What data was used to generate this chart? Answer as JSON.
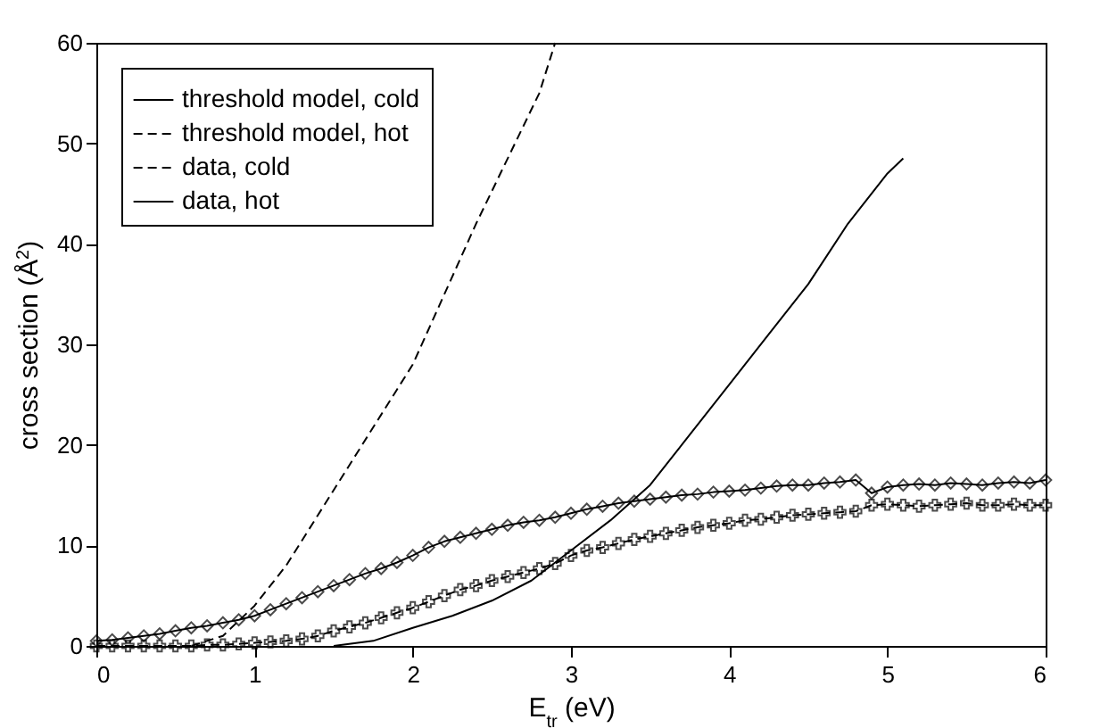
{
  "chart_data": {
    "type": "line",
    "xlabel": "E$_{tr}$ (eV)",
    "ylabel": "cross section (Å$^{2}$)",
    "xlim": [
      0,
      6
    ],
    "ylim": [
      0,
      60
    ],
    "xticks": [
      0,
      1,
      2,
      3,
      4,
      5,
      6
    ],
    "yticks": [
      0,
      10,
      20,
      30,
      40,
      50,
      60
    ],
    "grid": false,
    "legend": "top left",
    "series": [
      {
        "name": "threshold model, cold",
        "color": "#000000",
        "line_style": "solid",
        "marker": "none",
        "x": [
          1.5,
          1.75,
          2,
          2.25,
          2.5,
          2.75,
          3,
          3.25,
          3.5,
          3.75,
          4,
          4.25,
          4.5,
          4.75,
          5,
          5.1
        ],
        "values": [
          0,
          0.5,
          1.8,
          3,
          4.5,
          6.5,
          9.5,
          12.5,
          16,
          21,
          26,
          31,
          36,
          42,
          47,
          48.5
        ]
      },
      {
        "name": "threshold model, hot",
        "color": "#000000",
        "line_style": "dashed",
        "marker": "none",
        "x": [
          0.6,
          0.8,
          1,
          1.2,
          1.4,
          1.6,
          1.8,
          2,
          2.2,
          2.4,
          2.6,
          2.8,
          2.9
        ],
        "values": [
          0,
          1,
          4,
          8,
          13,
          18,
          23,
          28,
          35,
          42,
          48.5,
          55,
          60
        ]
      },
      {
        "name": "data, cold",
        "color": "#000000",
        "line_style": "dashed",
        "marker": "cross",
        "x": [
          0,
          0.1,
          0.2,
          0.3,
          0.4,
          0.5,
          0.6,
          0.7,
          0.8,
          0.9,
          1,
          1.1,
          1.2,
          1.3,
          1.4,
          1.5,
          1.6,
          1.7,
          1.8,
          1.9,
          2,
          2.1,
          2.2,
          2.3,
          2.4,
          2.5,
          2.6,
          2.7,
          2.8,
          2.9,
          3,
          3.1,
          3.2,
          3.3,
          3.4,
          3.5,
          3.6,
          3.7,
          3.8,
          3.9,
          4,
          4.1,
          4.2,
          4.3,
          4.4,
          4.5,
          4.6,
          4.7,
          4.8,
          4.9,
          5,
          5.1,
          5.2,
          5.3,
          5.4,
          5.5,
          5.6,
          5.7,
          5.8,
          5.9,
          6
        ],
        "values": [
          0,
          0,
          0,
          0,
          0,
          0,
          0,
          0.1,
          0.1,
          0.2,
          0.3,
          0.4,
          0.5,
          0.7,
          1,
          1.5,
          1.9,
          2.3,
          2.8,
          3.3,
          3.8,
          4.4,
          5,
          5.6,
          6,
          6.5,
          6.9,
          7.3,
          7.7,
          8.2,
          9,
          9.5,
          9.8,
          10.2,
          10.6,
          10.9,
          11.2,
          11.5,
          11.8,
          12,
          12.2,
          12.5,
          12.6,
          12.8,
          13,
          13.1,
          13.2,
          13.3,
          13.4,
          14,
          14.1,
          14,
          13.9,
          14,
          14.1,
          14.2,
          14,
          14,
          14.1,
          14,
          14
        ]
      },
      {
        "name": "data, hot",
        "color": "#000000",
        "line_style": "solid",
        "marker": "diamond",
        "x": [
          0,
          0.1,
          0.2,
          0.3,
          0.4,
          0.5,
          0.6,
          0.7,
          0.8,
          0.9,
          1,
          1.1,
          1.2,
          1.3,
          1.4,
          1.5,
          1.6,
          1.7,
          1.8,
          1.9,
          2,
          2.1,
          2.2,
          2.3,
          2.4,
          2.5,
          2.6,
          2.7,
          2.8,
          2.9,
          3,
          3.1,
          3.2,
          3.3,
          3.4,
          3.5,
          3.6,
          3.7,
          3.8,
          3.9,
          4,
          4.1,
          4.2,
          4.3,
          4.4,
          4.5,
          4.6,
          4.7,
          4.8,
          4.9,
          5,
          5.1,
          5.2,
          5.3,
          5.4,
          5.5,
          5.6,
          5.7,
          5.8,
          5.9,
          6
        ],
        "values": [
          0.5,
          0.6,
          0.8,
          1,
          1.2,
          1.5,
          1.8,
          2,
          2.3,
          2.6,
          3,
          3.6,
          4.2,
          4.8,
          5.4,
          6,
          6.6,
          7.2,
          7.7,
          8.3,
          9,
          9.8,
          10.4,
          10.8,
          11.2,
          11.6,
          12,
          12.3,
          12.5,
          12.8,
          13.2,
          13.6,
          13.9,
          14.2,
          14.4,
          14.6,
          14.8,
          15,
          15.1,
          15.3,
          15.4,
          15.5,
          15.7,
          15.9,
          16,
          16,
          16.2,
          16.3,
          16.5,
          15.2,
          15.8,
          16,
          16.1,
          16,
          16.2,
          16.1,
          16,
          16.2,
          16.3,
          16.2,
          16.5
        ]
      }
    ]
  }
}
